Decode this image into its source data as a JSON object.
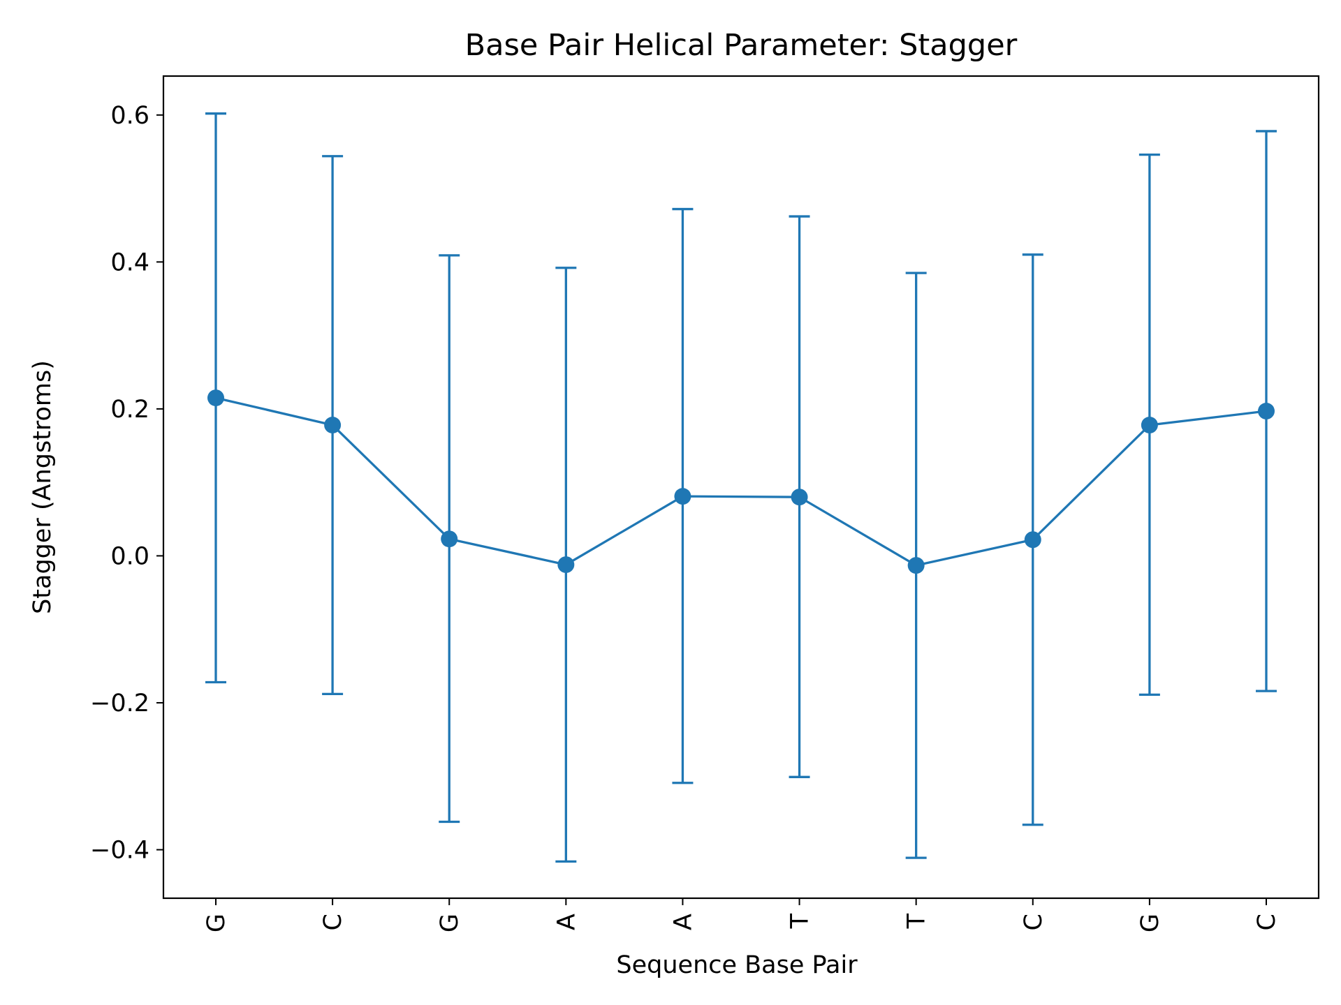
{
  "chart_data": {
    "type": "line",
    "title": "Base Pair  Helical Parameter: Stagger",
    "xlabel": "Sequence Base Pair",
    "ylabel": "Stagger (Angstroms)",
    "categories": [
      "G",
      "C",
      "G",
      "A",
      "A",
      "T",
      "T",
      "C",
      "G",
      "C"
    ],
    "series": [
      {
        "values": [
          0.215,
          0.178,
          0.023,
          -0.012,
          0.081,
          0.08,
          -0.013,
          0.022,
          0.178,
          0.197
        ],
        "error_low": [
          -0.172,
          -0.188,
          -0.362,
          -0.416,
          -0.309,
          -0.301,
          -0.411,
          -0.366,
          -0.189,
          -0.184
        ],
        "error_high": [
          0.602,
          0.544,
          0.409,
          0.392,
          0.472,
          0.462,
          0.385,
          0.41,
          0.546,
          0.578
        ],
        "color": "#1f77b4"
      }
    ],
    "ylim": [
      -0.466,
      0.653
    ],
    "yticks": [
      -0.4,
      -0.2,
      0.0,
      0.2,
      0.4,
      0.6
    ],
    "ytick_labels": [
      "−0.4",
      "−0.2",
      "0.0",
      "0.2",
      "0.4",
      "0.6"
    ],
    "grid": false,
    "legend": "none"
  }
}
